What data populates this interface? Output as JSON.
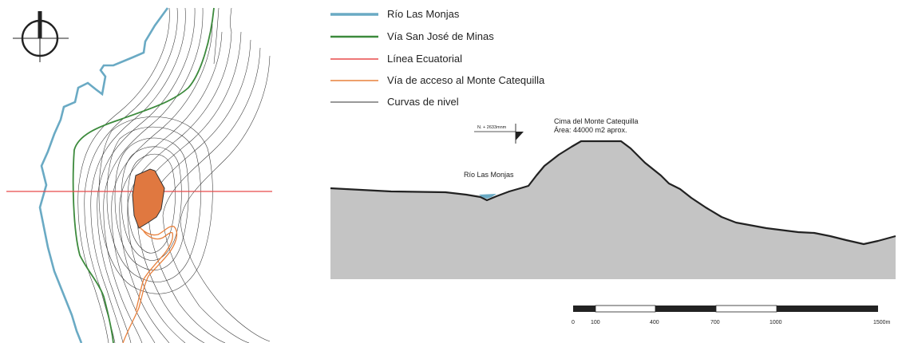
{
  "colors": {
    "river": "#6aaac4",
    "road_san_jose": "#3c8a3c",
    "equator": "#e84a4a",
    "access_road": "#e8803c",
    "contours": "#333333",
    "summit_fill": "#e07840",
    "terrain_fill": "#c4c4c4"
  },
  "legend": {
    "items": [
      {
        "label": "Río Las Monjas",
        "color": "#6aaac4",
        "weight": "thick"
      },
      {
        "label": "Vía San José de Minas",
        "color": "#3c8a3c",
        "weight": "medium"
      },
      {
        "label": "Línea Ecuatorial",
        "color": "#e84a4a",
        "weight": "thin"
      },
      {
        "label": "Vía de acceso al Monte Catequilla",
        "color": "#e8803c",
        "weight": "thin"
      },
      {
        "label": "Curvas de nivel",
        "color": "#333333",
        "weight": "hairline"
      }
    ]
  },
  "profile": {
    "level_marker": "N. + 2633mnm",
    "summit_title": "Cima del Monte Catequilla",
    "summit_area": "Área: 44000  m2 aprox.",
    "river_label": "Río Las Monjas"
  },
  "scale_bar": {
    "ticks": [
      "0",
      "100",
      "400",
      "700",
      "1000",
      "1500m"
    ]
  },
  "north_arrow": {
    "icon": "north-arrow-icon"
  }
}
